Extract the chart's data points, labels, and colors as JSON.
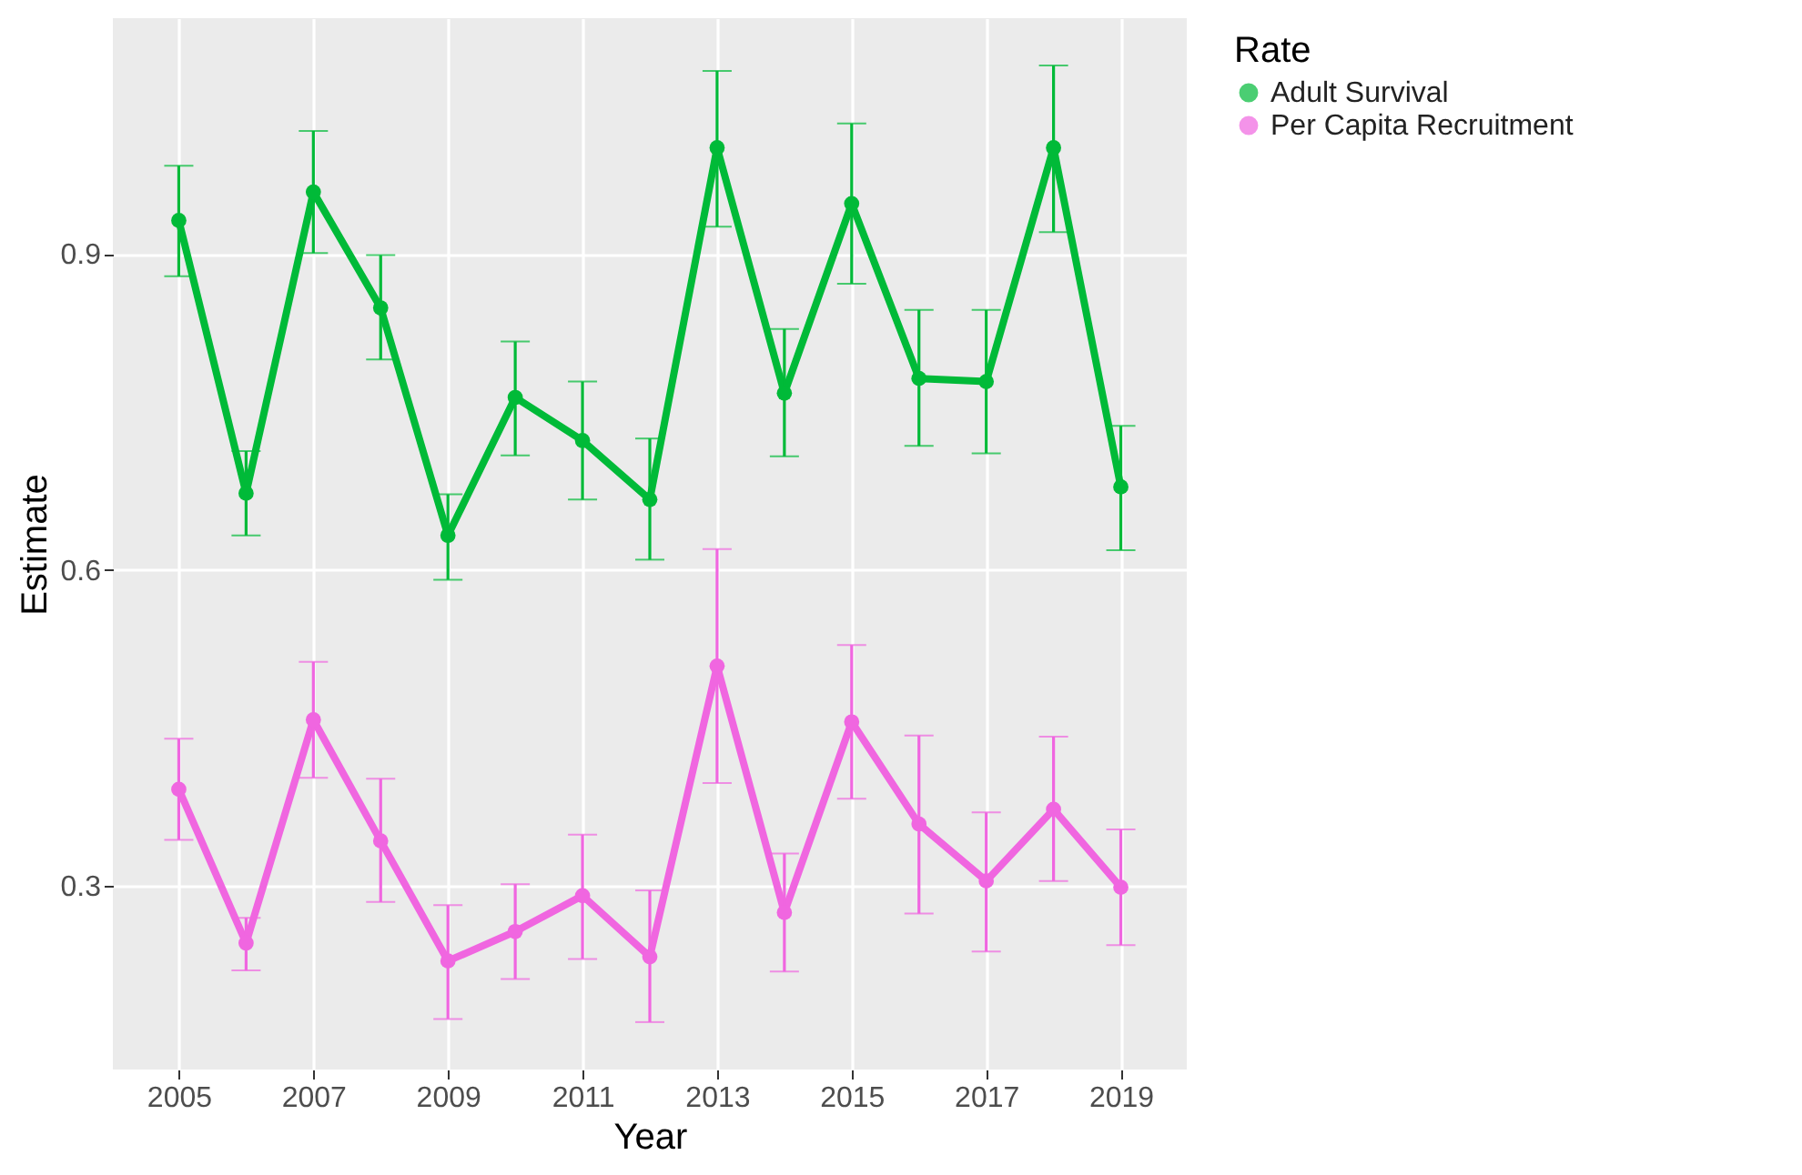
{
  "chart_data": {
    "type": "line",
    "xlabel": "Year",
    "ylabel": "Estimate",
    "legend_title": "Rate",
    "legend": "right",
    "grid": true,
    "marker": "circle",
    "line_style": "solid",
    "x": [
      2005,
      2006,
      2007,
      2008,
      2009,
      2010,
      2011,
      2012,
      2013,
      2014,
      2015,
      2016,
      2017,
      2018,
      2019
    ],
    "xlim": [
      2004.02,
      2019.98
    ],
    "xticks": [
      2005,
      2007,
      2009,
      2011,
      2013,
      2015,
      2017,
      2019
    ],
    "ylim": [
      0.126,
      1.124
    ],
    "yticks": [
      {
        "value": 0.3,
        "label": "0.3"
      },
      {
        "value": 0.6,
        "label": "0.6"
      },
      {
        "value": 0.9,
        "label": "0.9"
      }
    ],
    "series": [
      {
        "name": "Adult Survival",
        "color": "#00ba38",
        "values": [
          0.932,
          0.673,
          0.959,
          0.849,
          0.633,
          0.764,
          0.723,
          0.667,
          1.001,
          0.768,
          0.948,
          0.782,
          0.779,
          1.001,
          0.679
        ],
        "errors": [
          [
            0.879,
            0.984
          ],
          [
            0.633,
            0.713
          ],
          [
            0.901,
            1.017
          ],
          [
            0.8,
            0.899
          ],
          [
            0.591,
            0.672
          ],
          [
            0.709,
            0.817
          ],
          [
            0.667,
            0.779
          ],
          [
            0.61,
            0.725
          ],
          [
            0.926,
            1.074
          ],
          [
            0.708,
            0.829
          ],
          [
            0.872,
            1.024
          ],
          [
            0.718,
            0.847
          ],
          [
            0.711,
            0.847
          ],
          [
            0.921,
            1.079
          ],
          [
            0.619,
            0.737
          ]
        ]
      },
      {
        "name": "Per Capita Recruitment",
        "color": "#f066e0",
        "values": [
          0.392,
          0.246,
          0.458,
          0.343,
          0.229,
          0.257,
          0.291,
          0.233,
          0.509,
          0.275,
          0.456,
          0.359,
          0.305,
          0.373,
          0.299
        ],
        "errors": [
          [
            0.344,
            0.44
          ],
          [
            0.22,
            0.27
          ],
          [
            0.403,
            0.513
          ],
          [
            0.285,
            0.402
          ],
          [
            0.174,
            0.282
          ],
          [
            0.212,
            0.302
          ],
          [
            0.231,
            0.349
          ],
          [
            0.171,
            0.296
          ],
          [
            0.398,
            0.62
          ],
          [
            0.219,
            0.331
          ],
          [
            0.383,
            0.529
          ],
          [
            0.274,
            0.443
          ],
          [
            0.238,
            0.37
          ],
          [
            0.305,
            0.442
          ],
          [
            0.244,
            0.354
          ]
        ]
      }
    ]
  }
}
